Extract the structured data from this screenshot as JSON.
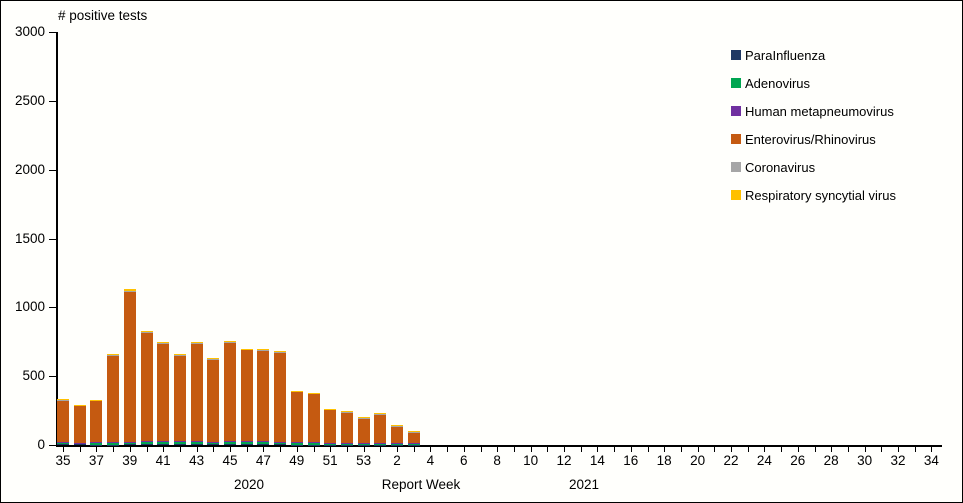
{
  "title": "# positive tests",
  "axes": {
    "x_label": "Report Week",
    "year_left": "2020",
    "year_right": "2021",
    "y_ticks": [
      0,
      500,
      1000,
      1500,
      2000,
      2500,
      3000
    ]
  },
  "legend": {
    "position": "right-top",
    "entries": [
      "ParaInfluenza",
      "Adenovirus",
      "Human metapneumovirus",
      "Enterovirus/Rhinovirus",
      "Coronavirus",
      "Respiratory syncytial virus"
    ]
  },
  "chart_data": {
    "type": "bar",
    "stacked": true,
    "title": "# positive tests",
    "xlabel": "Report Week",
    "ylabel": "# positive tests",
    "ylim": [
      0,
      3000
    ],
    "grid": false,
    "x_years": {
      "2020_weeks": "35-53",
      "2021_weeks": "1-34"
    },
    "categories": [
      35,
      36,
      37,
      38,
      39,
      40,
      41,
      42,
      43,
      44,
      45,
      46,
      47,
      48,
      49,
      50,
      51,
      52,
      53,
      1,
      2,
      3,
      4,
      5,
      6,
      7,
      8,
      9,
      10,
      11,
      12,
      13,
      14,
      15,
      16,
      17,
      18,
      19,
      20,
      21,
      22,
      23,
      24,
      25,
      26,
      27,
      28,
      29,
      30,
      31,
      32,
      33,
      34
    ],
    "label_every": 2,
    "series": [
      {
        "name": "ParaInfluenza",
        "color": "#1F3864",
        "values": [
          4,
          6,
          3,
          3,
          4,
          4,
          4,
          4,
          4,
          4,
          4,
          4,
          4,
          4,
          3,
          3,
          3,
          3,
          3,
          3,
          3,
          2,
          0,
          0,
          0,
          0,
          0,
          0,
          0,
          0,
          0,
          0,
          0,
          0,
          0,
          0,
          0,
          0,
          0,
          0,
          0,
          0,
          0,
          0,
          0,
          0,
          0,
          0,
          0,
          0,
          0,
          0,
          0
        ]
      },
      {
        "name": "Adenovirus",
        "color": "#00A651",
        "values": [
          14,
          7,
          13,
          17,
          16,
          19,
          17,
          17,
          19,
          14,
          19,
          17,
          19,
          17,
          14,
          14,
          11,
          11,
          11,
          9,
          9,
          7,
          0,
          0,
          0,
          0,
          0,
          0,
          0,
          0,
          0,
          0,
          0,
          0,
          0,
          0,
          0,
          0,
          0,
          0,
          0,
          0,
          0,
          0,
          0,
          0,
          0,
          0,
          0,
          0,
          0,
          0,
          0
        ]
      },
      {
        "name": "Human metapneumovirus",
        "color": "#7030A0",
        "values": [
          3,
          3,
          6,
          3,
          3,
          4,
          7,
          7,
          4,
          7,
          6,
          7,
          4,
          4,
          4,
          3,
          3,
          4,
          3,
          5,
          4,
          3,
          0,
          0,
          0,
          0,
          0,
          0,
          0,
          0,
          0,
          0,
          0,
          0,
          0,
          0,
          0,
          0,
          0,
          0,
          0,
          0,
          0,
          0,
          0,
          0,
          0,
          0,
          0,
          0,
          0,
          0,
          0
        ]
      },
      {
        "name": "Enterovirus/Rhinovirus",
        "color": "#C55A11",
        "values": [
          305,
          268,
          294,
          629,
          1094,
          790,
          708,
          623,
          709,
          596,
          717,
          663,
          659,
          646,
          367,
          353,
          243,
          222,
          176,
          203,
          121,
          83,
          0,
          0,
          0,
          0,
          0,
          0,
          0,
          0,
          0,
          0,
          0,
          0,
          0,
          0,
          0,
          0,
          0,
          0,
          0,
          0,
          0,
          0,
          0,
          0,
          0,
          0,
          0,
          0,
          0,
          0,
          0
        ]
      },
      {
        "name": "Coronavirus",
        "color": "#A6A6A6",
        "values": [
          3,
          3,
          9,
          3,
          4,
          4,
          4,
          4,
          4,
          4,
          4,
          4,
          4,
          4,
          3,
          3,
          2,
          2,
          2,
          8,
          3,
          2,
          0,
          0,
          0,
          0,
          0,
          0,
          0,
          0,
          0,
          0,
          0,
          0,
          0,
          0,
          0,
          0,
          0,
          0,
          0,
          0,
          0,
          0,
          0,
          0,
          0,
          0,
          0,
          0,
          0,
          0,
          0
        ]
      },
      {
        "name": "Respiratory syncytial virus",
        "color": "#FFC000",
        "values": [
          6,
          3,
          5,
          5,
          9,
          4,
          5,
          5,
          5,
          5,
          5,
          5,
          5,
          5,
          4,
          4,
          3,
          3,
          5,
          7,
          5,
          3,
          0,
          0,
          0,
          0,
          0,
          0,
          0,
          0,
          0,
          0,
          0,
          0,
          0,
          0,
          0,
          0,
          0,
          0,
          0,
          0,
          0,
          0,
          0,
          0,
          0,
          0,
          0,
          0,
          0,
          0,
          0
        ]
      }
    ],
    "totals_estimated": [
      335,
      290,
      330,
      660,
      1130,
      825,
      745,
      660,
      745,
      630,
      755,
      700,
      695,
      680,
      395,
      380,
      265,
      245,
      200,
      235,
      145,
      100,
      0,
      0,
      0,
      0,
      0,
      0,
      0,
      0,
      0,
      0,
      0,
      0,
      0,
      0,
      0,
      0,
      0,
      0,
      0,
      0,
      0,
      0,
      0,
      0,
      0,
      0,
      0,
      0,
      0,
      0,
      0
    ]
  }
}
